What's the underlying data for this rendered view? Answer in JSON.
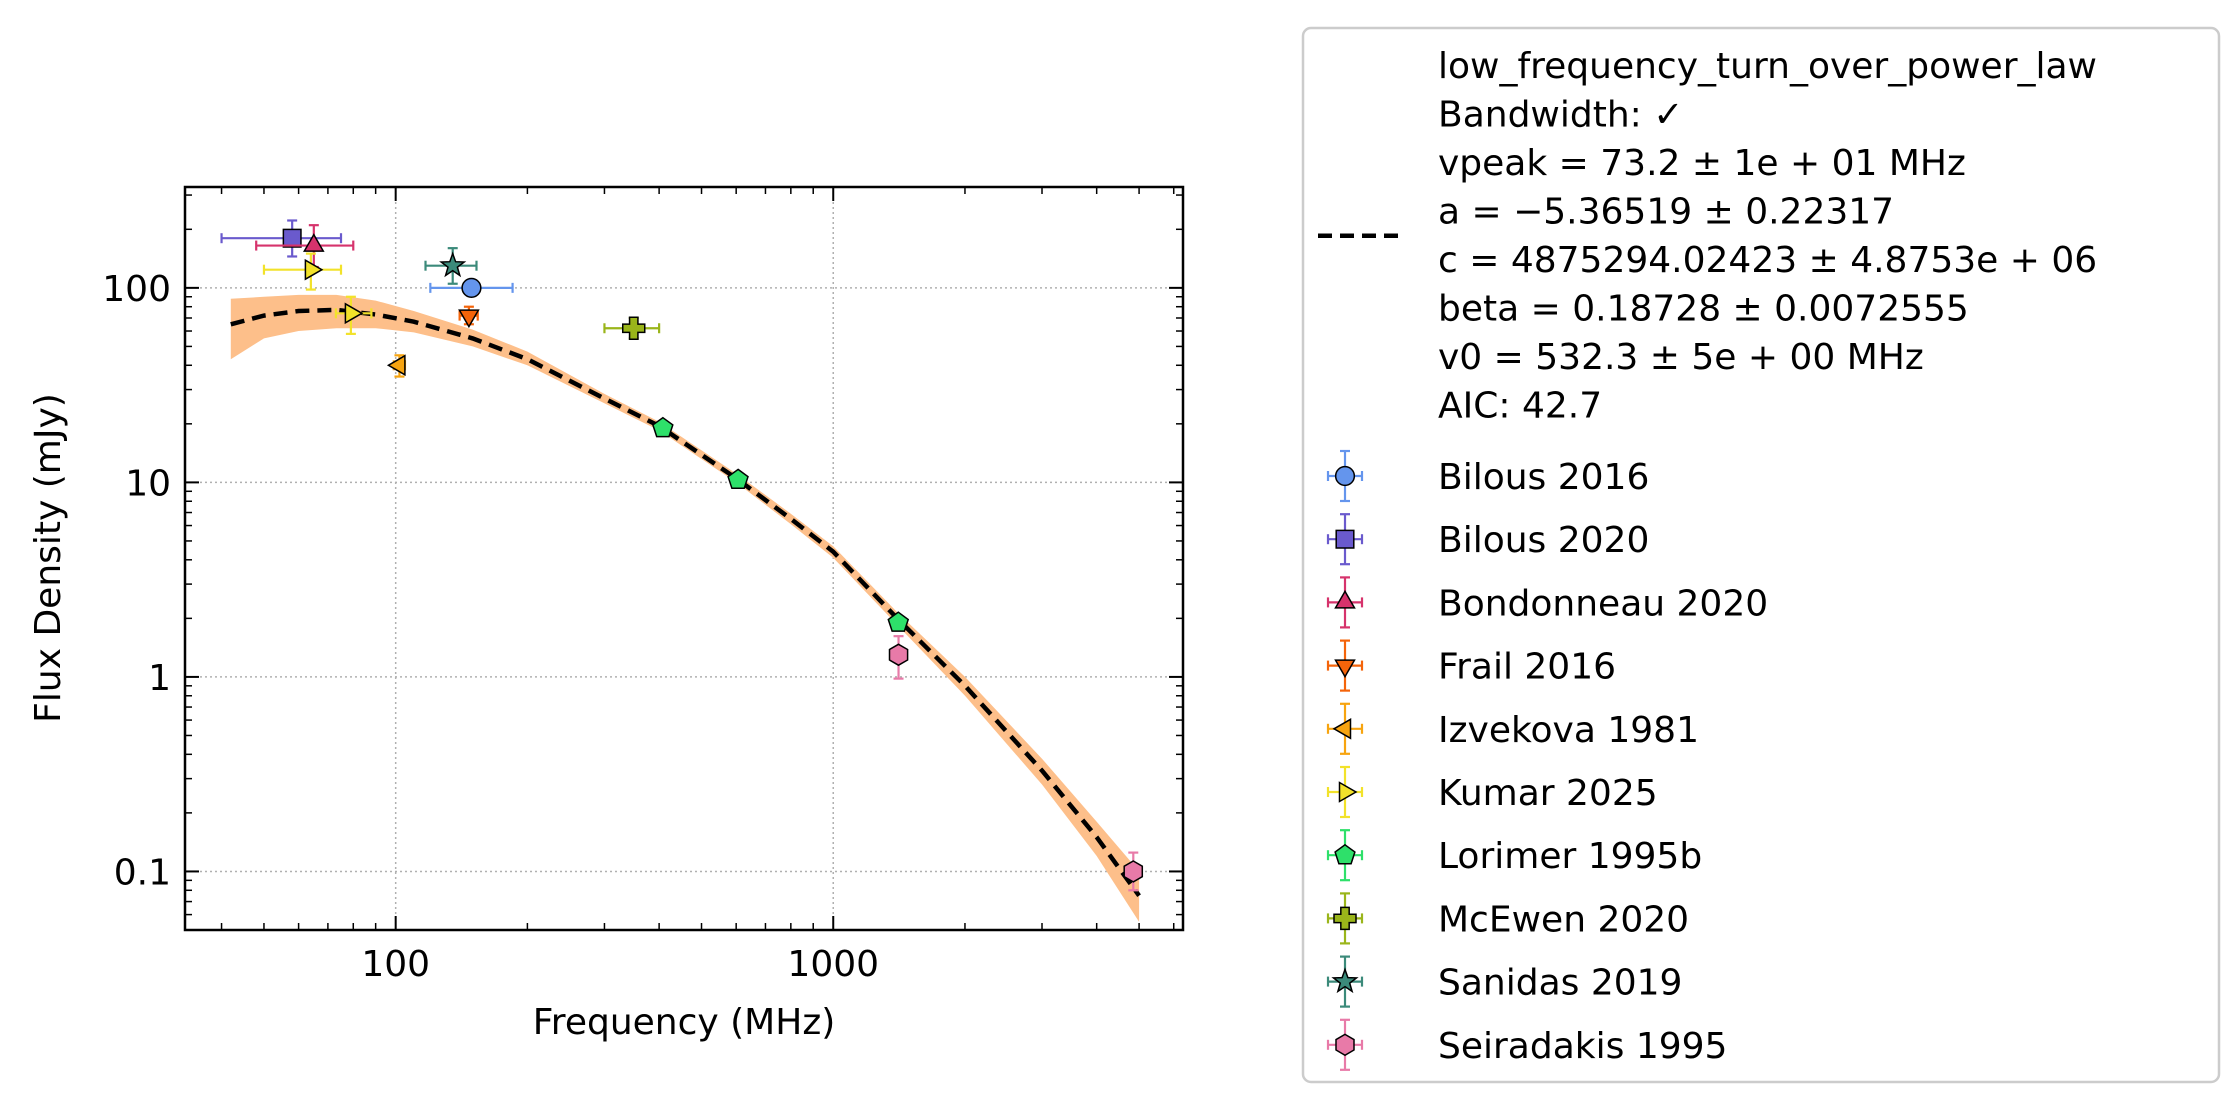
{
  "chart_data": {
    "type": "scatter",
    "title": "",
    "xlabel": "Frequency (MHz)",
    "ylabel": "Flux Density (mJy)",
    "xscale": "log",
    "yscale": "log",
    "xlim": [
      33,
      6300
    ],
    "ylim": [
      0.05,
      330
    ],
    "grid": true,
    "legend_position": "outside-right",
    "x_ticks": [
      {
        "value": 100,
        "label": "100"
      },
      {
        "value": 1000,
        "label": "1000"
      }
    ],
    "y_ticks": [
      {
        "value": 0.1,
        "label": "0.1"
      },
      {
        "value": 1,
        "label": "1"
      },
      {
        "value": 10,
        "label": "10"
      },
      {
        "value": 100,
        "label": "100"
      }
    ],
    "fit": {
      "label_lines": [
        "low_frequency_turn_over_power_law",
        "Bandwidth: ✓",
        "vpeak = 73.2 ± 1e + 01 MHz",
        "a = −5.36519 ± 0.22317",
        "c = 4875294.02423 ± 4.8753e + 06",
        "beta = 0.18728 ± 0.0072555",
        "v0 = 532.3 ± 5e + 00 MHz",
        "AIC: 42.7"
      ],
      "line_color": "#000000",
      "band_color": "#fdbf8a",
      "curve": [
        [
          42,
          65
        ],
        [
          50,
          72
        ],
        [
          60,
          76
        ],
        [
          73.2,
          77
        ],
        [
          90,
          73
        ],
        [
          110,
          67
        ],
        [
          150,
          55
        ],
        [
          200,
          43
        ],
        [
          300,
          27
        ],
        [
          400,
          19.5
        ],
        [
          600,
          10.5
        ],
        [
          800,
          6.5
        ],
        [
          1000,
          4.4
        ],
        [
          1400,
          2.0
        ],
        [
          2000,
          0.9
        ],
        [
          3000,
          0.33
        ],
        [
          4000,
          0.15
        ],
        [
          5000,
          0.075
        ]
      ],
      "band": [
        [
          42,
          43,
          88
        ],
        [
          50,
          55,
          90
        ],
        [
          60,
          60,
          92
        ],
        [
          73.2,
          62,
          92
        ],
        [
          90,
          62,
          86
        ],
        [
          110,
          59,
          76
        ],
        [
          150,
          50,
          61
        ],
        [
          200,
          40,
          47
        ],
        [
          300,
          25.5,
          28.5
        ],
        [
          400,
          18.5,
          20.5
        ],
        [
          600,
          10.0,
          11.1
        ],
        [
          800,
          6.1,
          6.9
        ],
        [
          1000,
          4.1,
          4.7
        ],
        [
          1400,
          1.85,
          2.15
        ],
        [
          2000,
          0.8,
          1.0
        ],
        [
          3000,
          0.28,
          0.38
        ],
        [
          4000,
          0.12,
          0.18
        ],
        [
          5000,
          0.055,
          0.1
        ]
      ]
    },
    "series": [
      {
        "name": "Bilous 2016",
        "color": "#6495ed",
        "marker": "circle",
        "points": [
          {
            "x": 149,
            "y": 100,
            "xlo": 120,
            "xhi": 185,
            "ylo": 92,
            "yhi": 108
          }
        ]
      },
      {
        "name": "Bilous 2020",
        "color": "#6a5acd",
        "marker": "square",
        "points": [
          {
            "x": 58,
            "y": 180,
            "xlo": 40,
            "xhi": 75,
            "ylo": 145,
            "yhi": 222
          }
        ]
      },
      {
        "name": "Bondonneau 2020",
        "color": "#d6336c",
        "marker": "triangle-up",
        "points": [
          {
            "x": 65,
            "y": 165,
            "xlo": 48,
            "xhi": 80,
            "ylo": 128,
            "yhi": 210
          }
        ]
      },
      {
        "name": "Frail 2016",
        "color": "#f4640a",
        "marker": "triangle-down",
        "points": [
          {
            "x": 147,
            "y": 72,
            "xlo": 140,
            "xhi": 154,
            "ylo": 65,
            "yhi": 80
          }
        ]
      },
      {
        "name": "Izvekova 1981",
        "color": "#f7a40f",
        "marker": "triangle-left",
        "points": [
          {
            "x": 102,
            "y": 40,
            "xlo": 99,
            "xhi": 105,
            "ylo": 35,
            "yhi": 45
          }
        ]
      },
      {
        "name": "Kumar 2025",
        "color": "#f2e22a",
        "marker": "triangle-right",
        "points": [
          {
            "x": 64,
            "y": 124,
            "xlo": 50,
            "xhi": 75,
            "ylo": 98,
            "yhi": 150
          },
          {
            "x": 79,
            "y": 74,
            "xlo": 73,
            "xhi": 88,
            "ylo": 58,
            "yhi": 90
          }
        ]
      },
      {
        "name": "Lorimer 1995b",
        "color": "#2ee06a",
        "marker": "pentagon",
        "points": [
          {
            "x": 408,
            "y": 19,
            "xlo": 404,
            "xhi": 412,
            "ylo": 18.3,
            "yhi": 19.7
          },
          {
            "x": 606,
            "y": 10.3,
            "xlo": 600,
            "xhi": 612,
            "ylo": 9.9,
            "yhi": 10.7
          },
          {
            "x": 1408,
            "y": 1.9,
            "xlo": 1395,
            "xhi": 1420,
            "ylo": 1.8,
            "yhi": 2.0
          }
        ]
      },
      {
        "name": "McEwen 2020",
        "color": "#9ab51a",
        "marker": "plus",
        "points": [
          {
            "x": 350,
            "y": 62,
            "xlo": 300,
            "xhi": 400,
            "ylo": 55,
            "yhi": 70
          }
        ]
      },
      {
        "name": "Sanidas 2019",
        "color": "#3b8a7a",
        "marker": "star",
        "points": [
          {
            "x": 135,
            "y": 130,
            "xlo": 117,
            "xhi": 153,
            "ylo": 105,
            "yhi": 160
          }
        ]
      },
      {
        "name": "Seiradakis 1995",
        "color": "#e87aa8",
        "marker": "hexagon",
        "points": [
          {
            "x": 1410,
            "y": 1.3,
            "xlo": 1395,
            "xhi": 1425,
            "ylo": 0.98,
            "yhi": 1.62
          },
          {
            "x": 4850,
            "y": 0.1,
            "xlo": 4800,
            "xhi": 4900,
            "ylo": 0.08,
            "yhi": 0.125
          }
        ]
      }
    ]
  }
}
